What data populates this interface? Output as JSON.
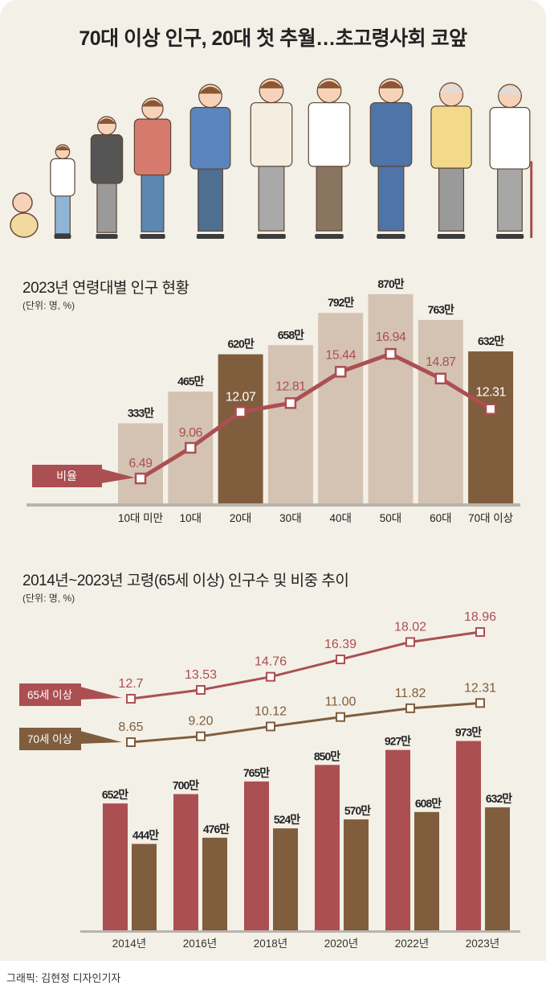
{
  "title": "70대 이상 인구, 20대 첫 추월…초고령사회 코앞",
  "credit": "그래픽: 김현정 디자인기자",
  "colors": {
    "background": "#f3f0e7",
    "light_bar": "#d4c3b2",
    "dark_bar": "#805d3d",
    "red": "#ac4f52",
    "brown": "#805d3d"
  },
  "chart_data": [
    {
      "type": "bar",
      "title": "2023년 연령대별 인구 현황",
      "unit": "(단위: 명, %)",
      "categories": [
        "10대 미만",
        "10대",
        "20대",
        "30대",
        "40대",
        "50대",
        "60대",
        "70대 이상"
      ],
      "values": [
        333,
        465,
        620,
        658,
        792,
        870,
        763,
        632
      ],
      "value_labels": [
        "333만",
        "465만",
        "620만",
        "658만",
        "792만",
        "870만",
        "763만",
        "632만"
      ],
      "highlight": [
        false,
        false,
        true,
        false,
        false,
        false,
        false,
        true
      ],
      "line_series": {
        "name": "비율",
        "values": [
          6.49,
          9.06,
          12.07,
          12.81,
          15.44,
          16.94,
          14.87,
          12.31
        ],
        "labels": [
          "6.49",
          "9.06",
          "12.07",
          "12.81",
          "15.44",
          "16.94",
          "14.87",
          "12.31"
        ]
      }
    },
    {
      "type": "bar",
      "title": "2014년~2023년 고령(65세 이상) 인구수 및 비중 추이",
      "unit": "(단위: 명, %)",
      "categories": [
        "2014년",
        "2016년",
        "2018년",
        "2020년",
        "2022년",
        "2023년"
      ],
      "series": [
        {
          "name": "65세 이상",
          "values": [
            652,
            700,
            765,
            850,
            927,
            973
          ],
          "labels": [
            "652만",
            "700만",
            "765만",
            "850만",
            "927만",
            "973만"
          ]
        },
        {
          "name": "70세 이상",
          "values": [
            444,
            476,
            524,
            570,
            608,
            632
          ],
          "labels": [
            "444만",
            "476만",
            "524만",
            "570만",
            "608만",
            "632만"
          ]
        }
      ],
      "line_series": [
        {
          "name": "65세 이상",
          "values": [
            12.7,
            13.53,
            14.76,
            16.39,
            18.02,
            18.96
          ],
          "labels": [
            "12.7",
            "13.53",
            "14.76",
            "16.39",
            "18.02",
            "18.96"
          ]
        },
        {
          "name": "70세 이상",
          "values": [
            8.65,
            9.2,
            10.12,
            11.0,
            11.82,
            12.31
          ],
          "labels": [
            "8.65",
            "9.20",
            "10.12",
            "11.00",
            "11.82",
            "12.31"
          ]
        }
      ]
    }
  ]
}
